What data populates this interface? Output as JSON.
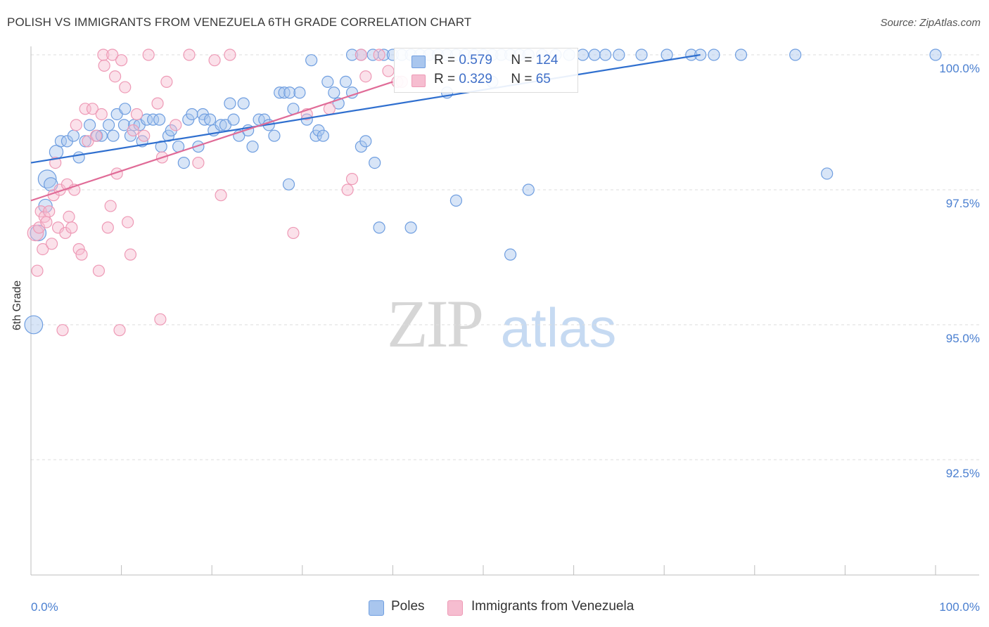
{
  "title": "POLISH VS IMMIGRANTS FROM VENEZUELA 6TH GRADE CORRELATION CHART",
  "source": "Source: ZipAtlas.com",
  "watermark": {
    "zip": "ZIP",
    "atlas": "atlas"
  },
  "legend": {
    "r_label": "R =",
    "n_label": "N =",
    "poles": {
      "r": "0.579",
      "n": "124"
    },
    "venezuela": {
      "r": "0.329",
      "n": " 65"
    }
  },
  "bottom_legend": {
    "poles": "Poles",
    "venezuela": "Immigrants from Venezuela"
  },
  "colors": {
    "poles_fill": "#a9c6ee",
    "poles_stroke": "#6f9ee0",
    "poles_line": "#2f6fcf",
    "venezuela_fill": "#f6bdd0",
    "venezuela_stroke": "#ee9ab6",
    "venezuela_line": "#e06b97",
    "tick_text": "#4a7fd0",
    "grid": "#dedede"
  },
  "chart_data": {
    "type": "scatter",
    "title": "POLISH VS IMMIGRANTS FROM VENEZUELA 6TH GRADE CORRELATION CHART",
    "xlabel": "",
    "ylabel": "6th Grade",
    "xlim": [
      0,
      100
    ],
    "ylim": [
      90.3,
      100.2
    ],
    "x_tick_labels": [
      "0.0%",
      "100.0%"
    ],
    "y_ticks": [
      92.5,
      95.0,
      97.5,
      100.0
    ],
    "y_tick_labels": [
      "92.5%",
      "95.0%",
      "97.5%",
      "100.0%"
    ],
    "grid": "horizontal dashed",
    "legend_position": "top-center",
    "series": [
      {
        "name": "Poles",
        "r": 0.579,
        "n": 124,
        "trend": {
          "x": [
            0,
            74
          ],
          "y": [
            98.0,
            100.0
          ]
        },
        "points": [
          [
            0.3,
            95.0,
            16
          ],
          [
            1.8,
            97.7,
            16
          ],
          [
            0.8,
            96.7,
            14
          ],
          [
            2.2,
            97.6,
            12
          ],
          [
            1.6,
            97.2,
            12
          ],
          [
            2.8,
            98.2,
            12
          ],
          [
            3.3,
            98.4,
            10
          ],
          [
            4.0,
            98.4,
            10
          ],
          [
            4.7,
            98.5,
            10
          ],
          [
            5.3,
            98.1,
            10
          ],
          [
            6.0,
            98.4,
            10
          ],
          [
            6.5,
            98.7,
            10
          ],
          [
            7.3,
            98.5,
            10
          ],
          [
            7.8,
            98.5,
            10
          ],
          [
            8.6,
            98.7,
            10
          ],
          [
            9.1,
            98.5,
            10
          ],
          [
            9.5,
            98.9,
            10
          ],
          [
            10.3,
            98.7,
            10
          ],
          [
            10.4,
            99.0,
            10
          ],
          [
            11.0,
            98.5,
            10
          ],
          [
            11.4,
            98.7,
            10
          ],
          [
            12.0,
            98.7,
            10
          ],
          [
            12.3,
            98.4,
            10
          ],
          [
            12.8,
            98.8,
            10
          ],
          [
            13.5,
            98.8,
            10
          ],
          [
            14.2,
            98.8,
            10
          ],
          [
            14.4,
            98.3,
            10
          ],
          [
            15.2,
            98.5,
            10
          ],
          [
            15.5,
            98.6,
            10
          ],
          [
            16.3,
            98.3,
            10
          ],
          [
            16.9,
            98.0,
            10
          ],
          [
            17.4,
            98.8,
            10
          ],
          [
            17.8,
            98.9,
            10
          ],
          [
            18.5,
            98.3,
            10
          ],
          [
            19.0,
            98.9,
            10
          ],
          [
            19.2,
            98.8,
            10
          ],
          [
            19.8,
            98.8,
            10
          ],
          [
            20.2,
            98.6,
            10
          ],
          [
            21.0,
            98.7,
            10
          ],
          [
            21.5,
            98.7,
            10
          ],
          [
            22.0,
            99.1,
            10
          ],
          [
            22.4,
            98.8,
            10
          ],
          [
            23.0,
            98.5,
            10
          ],
          [
            23.5,
            99.1,
            10
          ],
          [
            24.0,
            98.6,
            10
          ],
          [
            24.5,
            98.3,
            10
          ],
          [
            25.2,
            98.8,
            10
          ],
          [
            25.8,
            98.8,
            10
          ],
          [
            26.3,
            98.7,
            10
          ],
          [
            26.9,
            98.5,
            10
          ],
          [
            27.5,
            99.3,
            10
          ],
          [
            28.0,
            99.3,
            10
          ],
          [
            28.6,
            99.3,
            10
          ],
          [
            28.5,
            97.6,
            10
          ],
          [
            29.0,
            99.0,
            10
          ],
          [
            29.7,
            99.3,
            10
          ],
          [
            30.5,
            98.8,
            10
          ],
          [
            31.0,
            99.9,
            10
          ],
          [
            31.5,
            98.5,
            10
          ],
          [
            31.8,
            98.6,
            10
          ],
          [
            32.3,
            98.5,
            10
          ],
          [
            32.8,
            99.5,
            10
          ],
          [
            33.5,
            99.3,
            10
          ],
          [
            34.0,
            99.1,
            10
          ],
          [
            34.8,
            99.5,
            10
          ],
          [
            35.5,
            99.3,
            10
          ],
          [
            36.5,
            98.3,
            10
          ],
          [
            37.0,
            98.4,
            10
          ],
          [
            38.0,
            98.0,
            10
          ],
          [
            38.5,
            96.8,
            10
          ],
          [
            42.0,
            96.8,
            10
          ],
          [
            46.0,
            99.3,
            10
          ],
          [
            47.0,
            97.3,
            10
          ],
          [
            51.0,
            99.5,
            10
          ],
          [
            53.0,
            96.3,
            10
          ],
          [
            55.0,
            97.5,
            10
          ],
          [
            35.5,
            100.0,
            10
          ],
          [
            36.5,
            100.0,
            10
          ],
          [
            37.8,
            100.0,
            10
          ],
          [
            39.0,
            100.0,
            10
          ],
          [
            40.0,
            100.0,
            10
          ],
          [
            41.0,
            100.0,
            10
          ],
          [
            42.0,
            100.0,
            10
          ],
          [
            43.0,
            100.0,
            10
          ],
          [
            44.0,
            100.0,
            10
          ],
          [
            45.0,
            100.0,
            10
          ],
          [
            46.0,
            100.0,
            10
          ],
          [
            47.0,
            100.0,
            10
          ],
          [
            48.0,
            100.0,
            10
          ],
          [
            49.0,
            100.0,
            10
          ],
          [
            50.0,
            100.0,
            10
          ],
          [
            51.0,
            100.0,
            10
          ],
          [
            52.0,
            100.0,
            10
          ],
          [
            53.0,
            100.0,
            10
          ],
          [
            54.0,
            100.0,
            10
          ],
          [
            55.0,
            100.0,
            10
          ],
          [
            56.5,
            100.0,
            10
          ],
          [
            58.0,
            100.0,
            10
          ],
          [
            59.5,
            100.0,
            10
          ],
          [
            61.0,
            100.0,
            10
          ],
          [
            62.3,
            100.0,
            10
          ],
          [
            63.5,
            100.0,
            10
          ],
          [
            65.0,
            100.0,
            10
          ],
          [
            67.5,
            100.0,
            10
          ],
          [
            70.3,
            100.0,
            10
          ],
          [
            73.0,
            100.0,
            10
          ],
          [
            74.0,
            100.0,
            10
          ],
          [
            75.5,
            100.0,
            10
          ],
          [
            78.5,
            100.0,
            10
          ],
          [
            84.5,
            100.0,
            10
          ],
          [
            100.0,
            100.0,
            10
          ],
          [
            88.0,
            97.8,
            10
          ]
        ]
      },
      {
        "name": "Immigrants from Venezuela",
        "r": 0.329,
        "n": 65,
        "trend": {
          "x": [
            0,
            40
          ],
          "y": [
            97.3,
            99.5
          ]
        },
        "points": [
          [
            0.5,
            96.7,
            14
          ],
          [
            0.7,
            96.0,
            10
          ],
          [
            0.9,
            96.8,
            10
          ],
          [
            1.1,
            97.1,
            10
          ],
          [
            1.3,
            96.4,
            10
          ],
          [
            1.5,
            97.0,
            10
          ],
          [
            1.7,
            96.9,
            10
          ],
          [
            2.0,
            97.1,
            10
          ],
          [
            2.3,
            96.5,
            10
          ],
          [
            2.5,
            97.4,
            10
          ],
          [
            2.7,
            98.0,
            10
          ],
          [
            3.0,
            96.8,
            10
          ],
          [
            3.2,
            97.5,
            10
          ],
          [
            3.5,
            94.9,
            10
          ],
          [
            3.8,
            96.7,
            10
          ],
          [
            4.0,
            97.6,
            10
          ],
          [
            4.2,
            97.0,
            10
          ],
          [
            4.5,
            96.8,
            10
          ],
          [
            4.8,
            97.5,
            10
          ],
          [
            5.0,
            98.7,
            10
          ],
          [
            5.3,
            96.4,
            10
          ],
          [
            5.6,
            96.3,
            10
          ],
          [
            6.0,
            99.0,
            10
          ],
          [
            6.3,
            98.4,
            10
          ],
          [
            6.8,
            99.0,
            10
          ],
          [
            7.2,
            98.5,
            10
          ],
          [
            7.5,
            96.0,
            10
          ],
          [
            7.8,
            98.9,
            10
          ],
          [
            8.0,
            100.0,
            10
          ],
          [
            8.1,
            99.8,
            10
          ],
          [
            8.5,
            96.8,
            10
          ],
          [
            8.8,
            97.2,
            10
          ],
          [
            9.0,
            100.0,
            10
          ],
          [
            9.3,
            99.6,
            10
          ],
          [
            9.5,
            97.8,
            10
          ],
          [
            9.8,
            94.9,
            10
          ],
          [
            10.0,
            99.9,
            10
          ],
          [
            10.4,
            99.4,
            10
          ],
          [
            10.7,
            96.9,
            10
          ],
          [
            11.0,
            96.3,
            10
          ],
          [
            11.3,
            98.6,
            10
          ],
          [
            11.7,
            98.9,
            10
          ],
          [
            12.5,
            98.5,
            10
          ],
          [
            13.0,
            100.0,
            10
          ],
          [
            14.0,
            99.1,
            10
          ],
          [
            14.3,
            95.1,
            10
          ],
          [
            14.5,
            98.1,
            10
          ],
          [
            15.0,
            99.5,
            10
          ],
          [
            16.0,
            98.7,
            10
          ],
          [
            17.5,
            100.0,
            10
          ],
          [
            18.5,
            98.0,
            10
          ],
          [
            20.3,
            99.9,
            10
          ],
          [
            21.0,
            97.4,
            10
          ],
          [
            22.0,
            100.0,
            10
          ],
          [
            29.0,
            96.7,
            10
          ],
          [
            30.5,
            98.9,
            10
          ],
          [
            33.0,
            99.0,
            10
          ],
          [
            35.0,
            97.5,
            10
          ],
          [
            35.5,
            97.7,
            10
          ],
          [
            36.5,
            100.0,
            10
          ],
          [
            37.0,
            99.6,
            10
          ],
          [
            40.5,
            99.5,
            10
          ],
          [
            41.0,
            99.5,
            10
          ],
          [
            38.5,
            100.0,
            10
          ],
          [
            39.5,
            99.7,
            10
          ]
        ]
      }
    ]
  }
}
